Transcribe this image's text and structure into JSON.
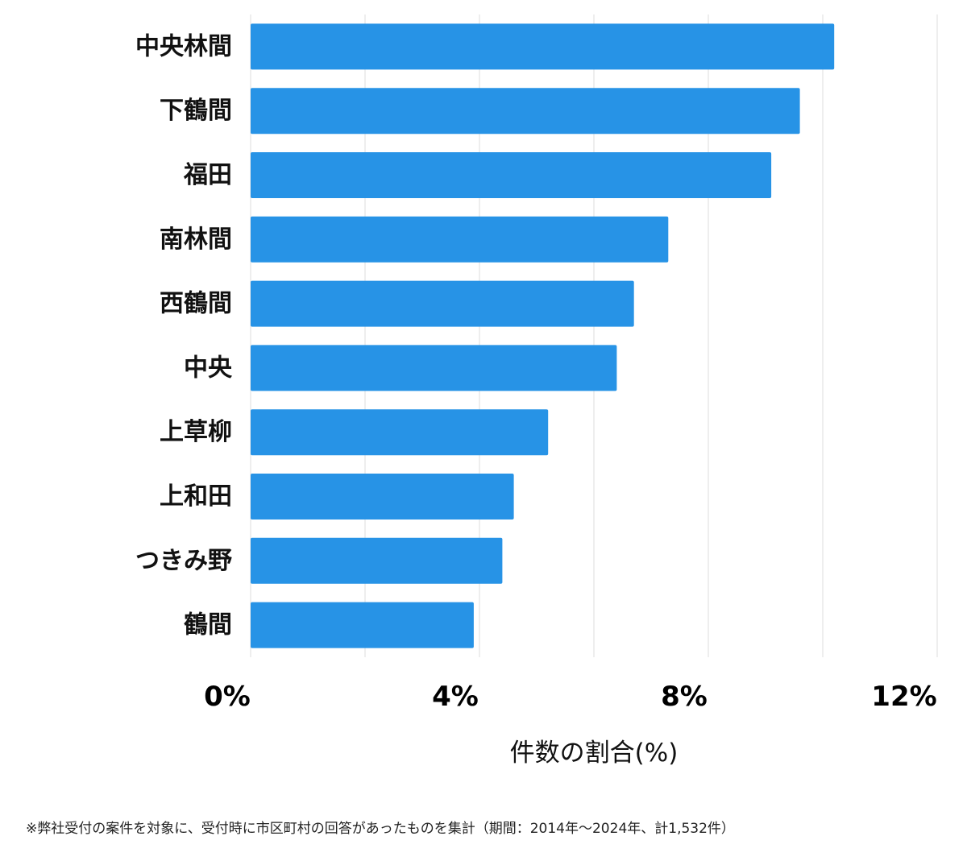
{
  "chart_data": {
    "type": "bar",
    "orientation": "horizontal",
    "categories": [
      "中央林間",
      "下鶴間",
      "福田",
      "南林間",
      "西鶴間",
      "中央",
      "上草柳",
      "上和田",
      "つきみ野",
      "鶴間"
    ],
    "values": [
      10.2,
      9.6,
      9.1,
      7.3,
      6.7,
      6.4,
      5.2,
      4.6,
      4.4,
      3.9
    ],
    "x_ticks": [
      "0%",
      "4%",
      "8%",
      "12%"
    ],
    "x_tick_values": [
      0,
      4,
      8,
      12
    ],
    "xlim": [
      0,
      12
    ],
    "xlabel": "件数の割合(%)",
    "grid": true,
    "bar_color": "#2793e6",
    "grid_color": "#dddddd"
  },
  "footnote": "※弊社受付の案件を対象に、受付時に市区町村の回答があったものを集計（期間：2014年〜2024年、計1,532件）"
}
